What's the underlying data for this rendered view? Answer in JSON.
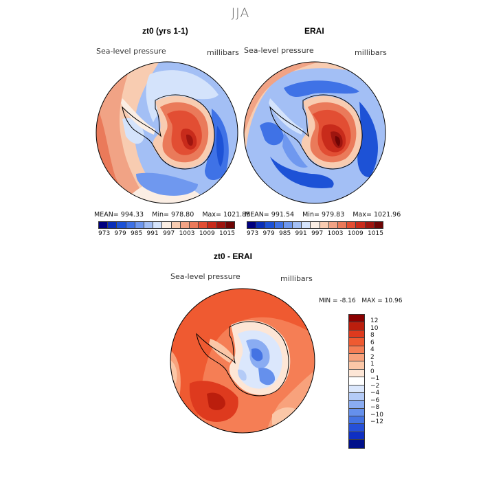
{
  "season": "JJA",
  "panel1": {
    "title": "zt0 (yrs 1-1)",
    "variable": "Sea-level pressure",
    "units": "millibars",
    "mean_label": "MEAN=",
    "mean": "994.33",
    "min_label": "Min=",
    "min": "978.80",
    "max_label": "Max=",
    "max": "1021.85"
  },
  "panel2": {
    "title": "ERAI",
    "variable": "Sea-level pressure",
    "units": "millibars",
    "mean_label": "MEAN=",
    "mean": "991.54",
    "min_label": "Min=",
    "min": "979.83",
    "max_label": "Max=",
    "max": "1021.96"
  },
  "panel3": {
    "title": "zt0 - ERAI",
    "variable": "Sea-level pressure",
    "units": "millibars",
    "min_label": "MIN =",
    "min": "-8.16",
    "max_label": "MAX =",
    "max": "10.96"
  },
  "colorbar_top": {
    "colors": [
      "#00007f",
      "#0a2fb8",
      "#1d52d6",
      "#3f72e6",
      "#6f98ef",
      "#a3bff5",
      "#d4e3fb",
      "#fbeee4",
      "#f8ccb1",
      "#f1a385",
      "#ea7a5a",
      "#e24e33",
      "#c82b1b",
      "#9e150f",
      "#6e0505"
    ],
    "ticks": [
      "973",
      "979",
      "985",
      "991",
      "997",
      "1003",
      "1009",
      "1015"
    ]
  },
  "colorbar_diff": {
    "colors": [
      "#8a0000",
      "#bb1e0d",
      "#de3a1e",
      "#ef5a31",
      "#f57e55",
      "#f8a27c",
      "#fbc7a7",
      "#fde6d6",
      "#ffffff",
      "#dbe7fc",
      "#b4cbf7",
      "#8aacf2",
      "#6590ec",
      "#4473e3",
      "#2650d8",
      "#0f2fc3",
      "#000f8a"
    ],
    "labels": [
      "12",
      "10",
      "8",
      "6",
      "4",
      "2",
      "1",
      "0",
      "−1",
      "−2",
      "−4",
      "−6",
      "−8",
      "−10",
      "−12"
    ]
  }
}
